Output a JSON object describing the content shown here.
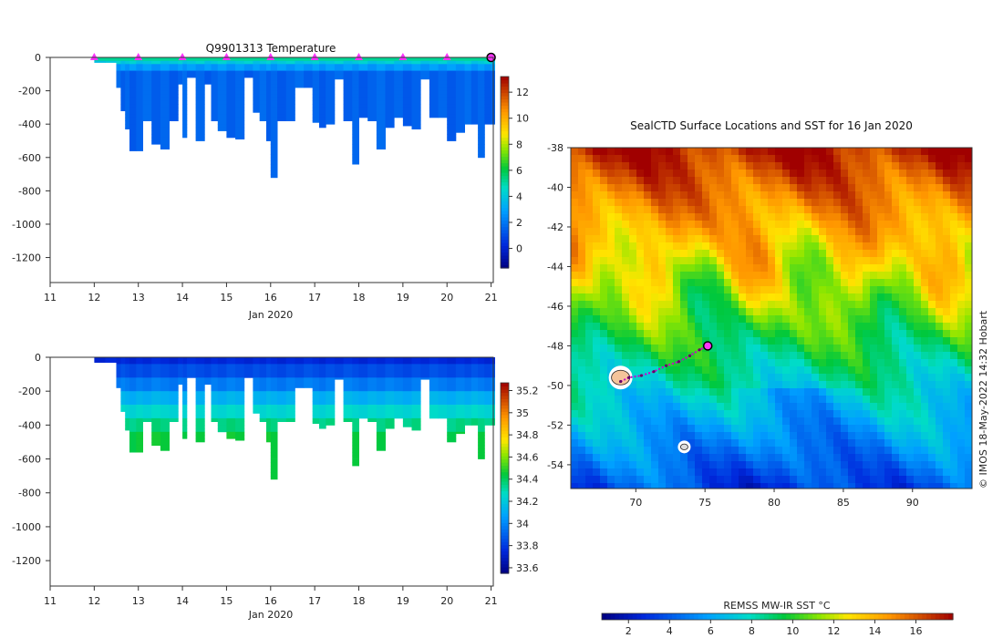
{
  "chart_data": [
    {
      "id": "temperature",
      "type": "heatmap",
      "title": "Q9901313  Temperature",
      "xlabel": "Jan 2020",
      "x_ticks": [
        "11",
        "12",
        "13",
        "14",
        "15",
        "16",
        "17",
        "18",
        "19",
        "20",
        "21"
      ],
      "xlim": [
        11,
        21.05
      ],
      "ylim": [
        -1350,
        0
      ],
      "y_ticks": [
        "0",
        "-200",
        "-400",
        "-600",
        "-800",
        "-1000",
        "-1200"
      ],
      "y_tick_values": [
        0,
        -200,
        -400,
        -600,
        -800,
        -1000,
        -1200
      ],
      "colorbar": {
        "min": -1.5,
        "max": 13.2,
        "ticks": [
          "0",
          "2",
          "4",
          "6",
          "8",
          "10",
          "12"
        ],
        "tick_values": [
          0,
          2,
          4,
          6,
          8,
          10,
          12
        ]
      },
      "profile_days": [
        12.0,
        12.25,
        12.5,
        12.6,
        12.7,
        12.8,
        12.95,
        13.1,
        13.3,
        13.5,
        13.7,
        13.9,
        14.0,
        14.1,
        14.3,
        14.5,
        14.65,
        14.8,
        15.0,
        15.2,
        15.4,
        15.6,
        15.75,
        15.9,
        16.0,
        16.15,
        16.35,
        16.55,
        16.75,
        16.95,
        17.1,
        17.25,
        17.45,
        17.65,
        17.85,
        18.0,
        18.2,
        18.4,
        18.6,
        18.8,
        19.0,
        19.2,
        19.4,
        19.6,
        19.8,
        20.0,
        20.2,
        20.4,
        20.55,
        20.7,
        20.85,
        21.0
      ],
      "profile_depths": [
        30,
        30,
        180,
        320,
        430,
        560,
        560,
        380,
        520,
        550,
        380,
        160,
        480,
        120,
        500,
        160,
        380,
        440,
        480,
        490,
        120,
        330,
        380,
        500,
        720,
        380,
        380,
        180,
        180,
        390,
        420,
        400,
        130,
        380,
        640,
        360,
        380,
        550,
        420,
        360,
        410,
        430,
        130,
        360,
        360,
        500,
        450,
        400,
        400,
        600,
        400,
        400
      ],
      "marker_days": [
        12,
        13,
        14,
        15,
        16,
        17,
        18,
        19,
        20
      ],
      "current_day": 21.0,
      "marker_color": "#ff33ff"
    },
    {
      "id": "salinity",
      "type": "heatmap",
      "title": "",
      "xlabel": "Jan 2020",
      "x_ticks": [
        "11",
        "12",
        "13",
        "14",
        "15",
        "16",
        "17",
        "18",
        "19",
        "20",
        "21"
      ],
      "xlim": [
        11,
        21.05
      ],
      "ylim": [
        -1350,
        0
      ],
      "y_ticks": [
        "0",
        "-200",
        "-400",
        "-600",
        "-800",
        "-1000",
        "-1200"
      ],
      "y_tick_values": [
        0,
        -200,
        -400,
        -600,
        -800,
        -1000,
        -1200
      ],
      "colorbar": {
        "min": 33.55,
        "max": 35.27,
        "ticks": [
          "33.6",
          "33.8",
          "34",
          "34.2",
          "34.4",
          "34.6",
          "34.8",
          "35",
          "35.2"
        ],
        "tick_values": [
          33.6,
          33.8,
          34.0,
          34.2,
          34.4,
          34.6,
          34.8,
          35.0,
          35.2
        ]
      }
    },
    {
      "id": "sst-map",
      "type": "heatmap",
      "title": "SealCTD Surface Locations and SST for 16 Jan 2020",
      "xlim": [
        65.3,
        94.3
      ],
      "ylim": [
        -55.2,
        -38
      ],
      "x_ticks": [
        "70",
        "75",
        "80",
        "85",
        "90"
      ],
      "x_tick_values": [
        70,
        75,
        80,
        85,
        90
      ],
      "y_ticks": [
        "-38",
        "-40",
        "-42",
        "-44",
        "-46",
        "-48",
        "-50",
        "-52",
        "-54"
      ],
      "y_tick_values": [
        -38,
        -40,
        -42,
        -44,
        -46,
        -48,
        -50,
        -52,
        -54
      ],
      "colorbar": {
        "label": "REMSS MW-IR SST °C",
        "min": 0.7,
        "max": 17.8,
        "ticks": [
          "2",
          "4",
          "6",
          "8",
          "10",
          "12",
          "14",
          "16"
        ],
        "tick_values": [
          2,
          4,
          6,
          8,
          10,
          12,
          14,
          16
        ]
      },
      "track": [
        [
          68.9,
          -49.8
        ],
        [
          69.5,
          -49.6
        ],
        [
          70.4,
          -49.5
        ],
        [
          71.3,
          -49.3
        ],
        [
          72.2,
          -49.0
        ],
        [
          73.1,
          -48.8
        ],
        [
          73.9,
          -48.5
        ],
        [
          74.6,
          -48.2
        ],
        [
          75.2,
          -48.0
        ]
      ],
      "current_location": [
        75.2,
        -48.0
      ],
      "island_locations": [
        [
          68.9,
          -49.6
        ],
        [
          73.5,
          -53.1
        ]
      ],
      "credit": "© IMOS 18-May-2022 14:32 Hobart"
    }
  ]
}
